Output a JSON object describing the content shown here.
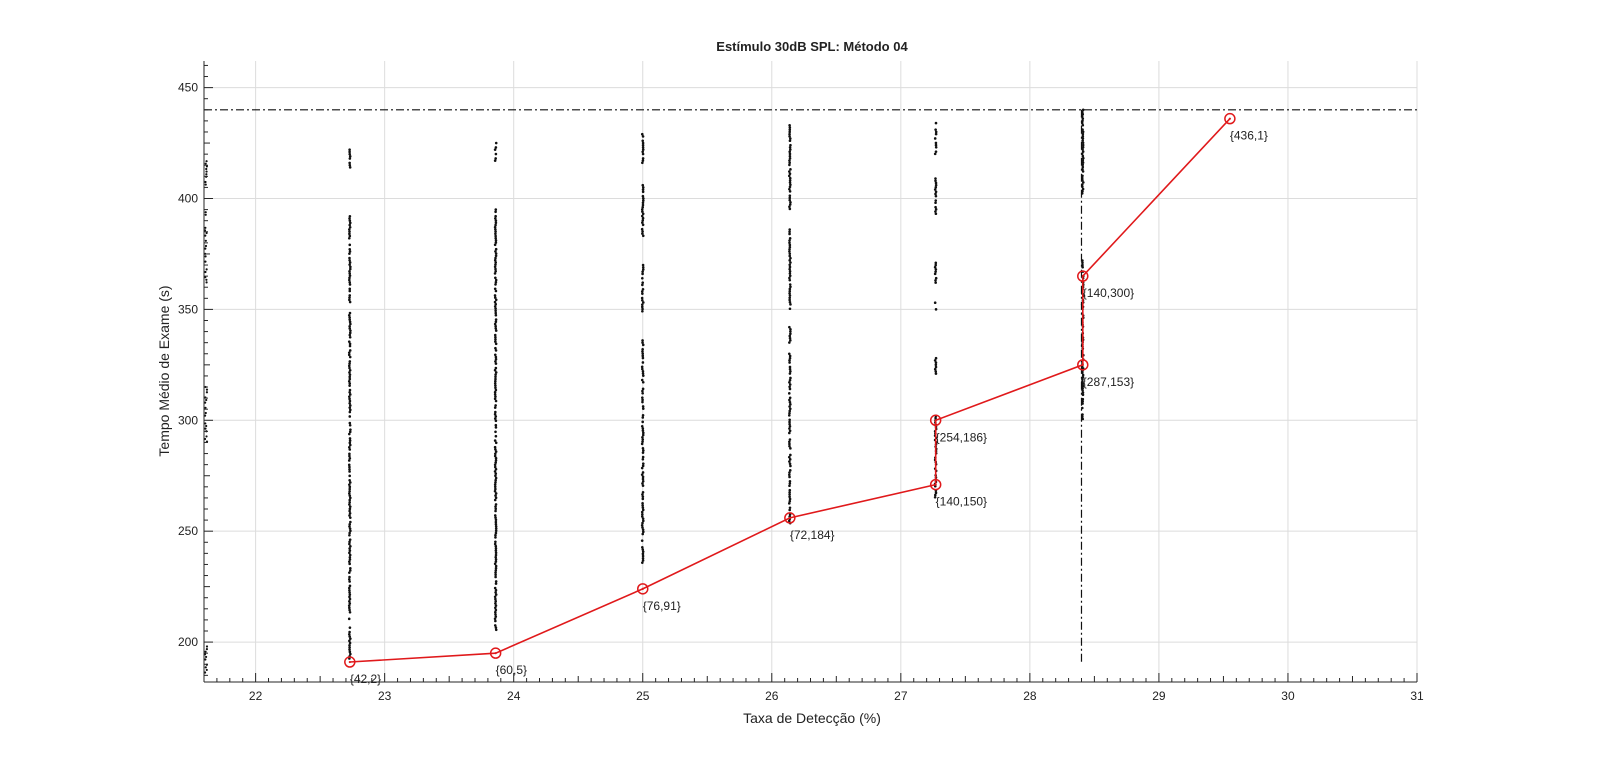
{
  "chart_data": {
    "type": "scatter",
    "title": "Estímulo 30dB SPL: Método 04",
    "xlabel": "Taxa de Detecção (%)",
    "ylabel": "Tempo Médio de Exame (s)",
    "xlim": [
      21.6,
      31
    ],
    "ylim": [
      182,
      462
    ],
    "xticks": [
      22,
      23,
      24,
      25,
      26,
      27,
      28,
      29,
      30,
      31
    ],
    "yticks": [
      200,
      250,
      300,
      350,
      400,
      450
    ],
    "grid": true,
    "reference_lines": {
      "y": 440,
      "x": 28.4,
      "style": "dash-dot"
    },
    "scatter_columns": [
      {
        "x": 22.73,
        "y_ranges": [
          [
            192,
            392
          ],
          [
            414,
            422
          ]
        ]
      },
      {
        "x": 23.86,
        "y_ranges": [
          [
            205,
            395
          ],
          [
            416,
            425
          ]
        ]
      },
      {
        "x": 25.0,
        "y_ranges": [
          [
            235,
            336
          ],
          [
            348,
            370
          ],
          [
            383,
            406
          ],
          [
            416,
            429
          ]
        ]
      },
      {
        "x": 26.14,
        "y_ranges": [
          [
            252,
            330
          ],
          [
            335,
            342
          ],
          [
            350,
            386
          ],
          [
            395,
            433
          ]
        ]
      },
      {
        "x": 27.27,
        "y_ranges": [
          [
            265,
            302
          ],
          [
            321,
            328
          ],
          [
            350,
            354
          ],
          [
            362,
            371
          ],
          [
            393,
            409
          ],
          [
            420,
            435
          ]
        ]
      },
      {
        "x": 28.41,
        "y_ranges": [
          [
            300,
            372
          ],
          [
            402,
            440
          ]
        ]
      }
    ],
    "series": [
      {
        "color": "#e0191b",
        "marker": "circle",
        "points": [
          {
            "x": 22.73,
            "y": 191,
            "label": "{42,2}"
          },
          {
            "x": 23.86,
            "y": 195,
            "label": "{60,5}"
          },
          {
            "x": 25.0,
            "y": 224,
            "label": "{76,91}"
          },
          {
            "x": 26.14,
            "y": 256,
            "label": "{72,184}"
          },
          {
            "x": 27.27,
            "y": 271,
            "label": "{140,150}"
          },
          {
            "x": 27.27,
            "y": 300,
            "label": "{254,186}"
          },
          {
            "x": 28.41,
            "y": 325,
            "label": "{287,153}"
          },
          {
            "x": 28.41,
            "y": 365,
            "label": "{140,300}"
          },
          {
            "x": 29.55,
            "y": 436,
            "label": "{436,1}"
          }
        ]
      }
    ]
  }
}
